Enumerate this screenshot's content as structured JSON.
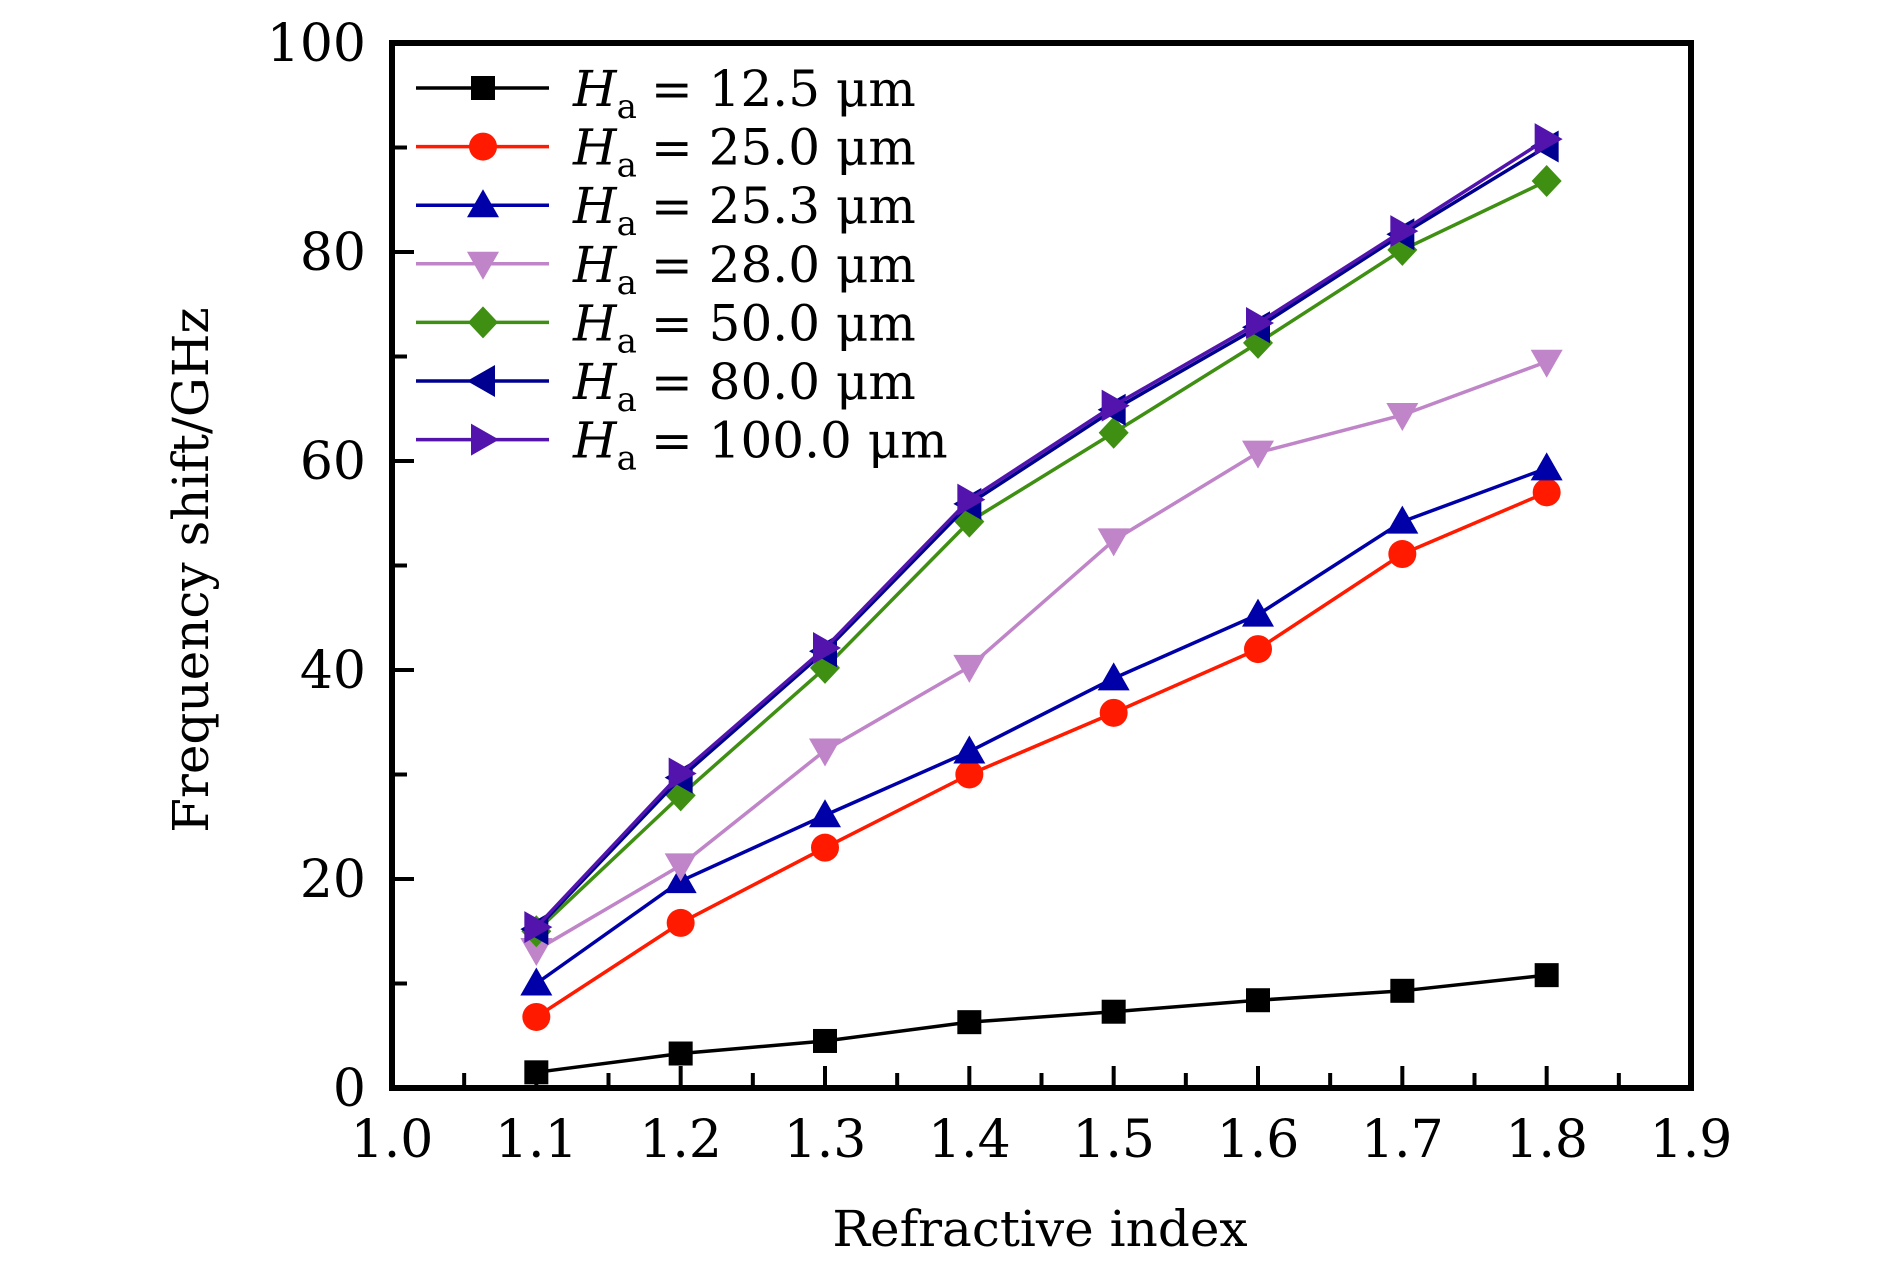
{
  "chart_data": {
    "type": "line",
    "title": "",
    "xlabel": "Refractive index",
    "ylabel": "Frequency shift/GHz",
    "xlim": [
      1.0,
      1.9
    ],
    "ylim": [
      0,
      100
    ],
    "x_ticks": [
      1.0,
      1.1,
      1.2,
      1.3,
      1.4,
      1.5,
      1.6,
      1.7,
      1.8,
      1.9
    ],
    "x_tick_labels": [
      "1.0",
      "1.1",
      "1.2",
      "1.3",
      "1.4",
      "1.5",
      "1.6",
      "1.7",
      "1.8",
      "1.9"
    ],
    "x_minor_step": 0.05,
    "y_ticks": [
      0,
      20,
      40,
      60,
      80,
      100
    ],
    "y_tick_labels": [
      "0",
      "20",
      "40",
      "60",
      "80",
      "100"
    ],
    "y_minor_step": 10,
    "grid": false,
    "legend_position": "top-left",
    "x": [
      1.1,
      1.2,
      1.3,
      1.4,
      1.5,
      1.6,
      1.7,
      1.8
    ],
    "series": [
      {
        "name": "H_a = 12.5 μm",
        "symbol": "H",
        "subscript": "a",
        "value_text": "= 12.5 μm",
        "color": "#000000",
        "marker": "square",
        "values": [
          1.5,
          3.3,
          4.5,
          6.3,
          7.3,
          8.4,
          9.3,
          10.8
        ]
      },
      {
        "name": "H_a = 25.0 μm",
        "symbol": "H",
        "subscript": "a",
        "value_text": "= 25.0 μm",
        "color": "#ff1a00",
        "marker": "circle",
        "values": [
          6.8,
          15.8,
          23.0,
          30.0,
          35.9,
          42.0,
          51.1,
          57.0
        ]
      },
      {
        "name": "H_a = 25.3 μm",
        "symbol": "H",
        "subscript": "a",
        "value_text": "= 25.3 μm",
        "color": "#0000a8",
        "marker": "triangle-up",
        "values": [
          10.0,
          19.8,
          26.1,
          32.2,
          39.2,
          45.3,
          54.2,
          59.3
        ]
      },
      {
        "name": "H_a = 28.0 μm",
        "symbol": "H",
        "subscript": "a",
        "value_text": "= 28.0 μm",
        "color": "#c084c8",
        "marker": "triangle-down",
        "values": [
          13.2,
          21.3,
          32.3,
          40.3,
          52.4,
          60.8,
          64.4,
          69.5
        ]
      },
      {
        "name": "H_a = 50.0 μm",
        "symbol": "H",
        "subscript": "a",
        "value_text": "= 50.0 μm",
        "color": "#3f8f12",
        "marker": "diamond",
        "values": [
          15.0,
          28.0,
          40.2,
          54.2,
          62.7,
          71.3,
          80.2,
          86.8
        ]
      },
      {
        "name": "H_a = 80.0 μm",
        "symbol": "H",
        "subscript": "a",
        "value_text": "= 80.0 μm",
        "color": "#000090",
        "marker": "triangle-left",
        "values": [
          15.2,
          29.7,
          41.8,
          55.9,
          64.9,
          72.8,
          81.7,
          90.1
        ]
      },
      {
        "name": "H_a = 100.0 μm",
        "symbol": "H",
        "subscript": "a",
        "value_text": "= 100.0 μm",
        "color": "#5214ac",
        "marker": "triangle-right",
        "values": [
          15.4,
          30.1,
          42.1,
          56.3,
          65.3,
          73.2,
          82.0,
          90.8
        ]
      }
    ]
  }
}
